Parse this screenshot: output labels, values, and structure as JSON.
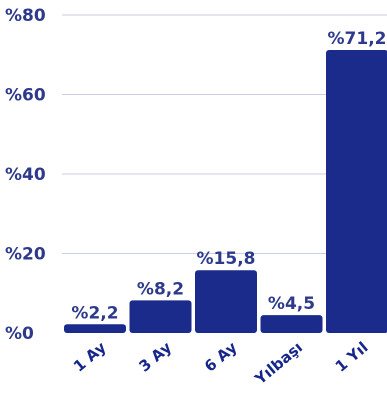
{
  "chart_data": {
    "type": "bar",
    "categories": [
      "1 Ay",
      "3 Ay",
      "6 Ay",
      "Yılbaşı",
      "1 Yıl"
    ],
    "values": [
      2.2,
      8.2,
      15.8,
      4.5,
      71.2
    ],
    "data_labels": [
      "%2,2",
      "%8,2",
      "%15,8",
      "%4,5",
      "%71,2"
    ],
    "y_ticks": [
      0,
      20,
      40,
      60,
      80
    ],
    "y_tick_labels": [
      "%0",
      "%20",
      "%40",
      "%60",
      "%80"
    ],
    "ylim": [
      0,
      80
    ],
    "grid": true,
    "title": "",
    "xlabel": "",
    "ylabel": ""
  },
  "colors": {
    "bar": "#1a2b8c",
    "text": "#2d3a8c",
    "grid": "#c9cfe6"
  }
}
